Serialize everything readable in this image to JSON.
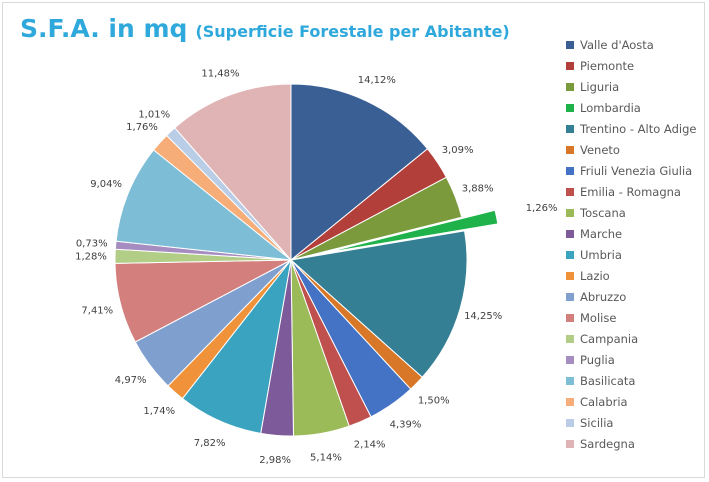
{
  "chart_data": {
    "type": "pie",
    "title": "S.F.A. in mq",
    "subtitle": "(Superficie Forestale per Abitante)",
    "legend_position": "right",
    "start_angle": "top, clockwise",
    "exploded": [
      "Lombardia"
    ],
    "categories": [
      "Valle d'Aosta",
      "Piemonte",
      "Liguria",
      "Lombardia",
      "Trentino - Alto Adige",
      "Veneto",
      "Friuli Venezia Giulia",
      "Emilia - Romagna",
      "Toscana",
      "Marche",
      "Umbria",
      "Lazio",
      "Abruzzo",
      "Molise",
      "Campania",
      "Puglia",
      "Basilicata",
      "Calabria",
      "Sicilia",
      "Sardegna"
    ],
    "values": [
      14.12,
      3.09,
      3.88,
      1.26,
      14.25,
      1.5,
      4.39,
      2.14,
      5.14,
      2.98,
      7.82,
      1.74,
      4.97,
      7.41,
      1.28,
      0.73,
      9.04,
      1.76,
      1.01,
      11.48
    ],
    "labels": [
      "14,12%",
      "3,09%",
      "3,88%",
      "1,26%",
      "14,25%",
      "1,50%",
      "4,39%",
      "2,14%",
      "5,14%",
      "2,98%",
      "7,82%",
      "1,74%",
      "4,97%",
      "7,41%",
      "1,28%",
      "0,73%",
      "9,04%",
      "1,76%",
      "1,01%",
      "11,48%"
    ],
    "colors": [
      "#3a5f94",
      "#b33f3b",
      "#7a9a3c",
      "#1fb24a",
      "#357f95",
      "#d77727",
      "#4472c4",
      "#c0504d",
      "#9bbb59",
      "#7d5a99",
      "#3aa3c0",
      "#f0923a",
      "#7f9fce",
      "#d37f7d",
      "#b2cd86",
      "#a58dc1",
      "#7dbed6",
      "#f7ad78",
      "#bacde6",
      "#e0b4b4"
    ]
  }
}
